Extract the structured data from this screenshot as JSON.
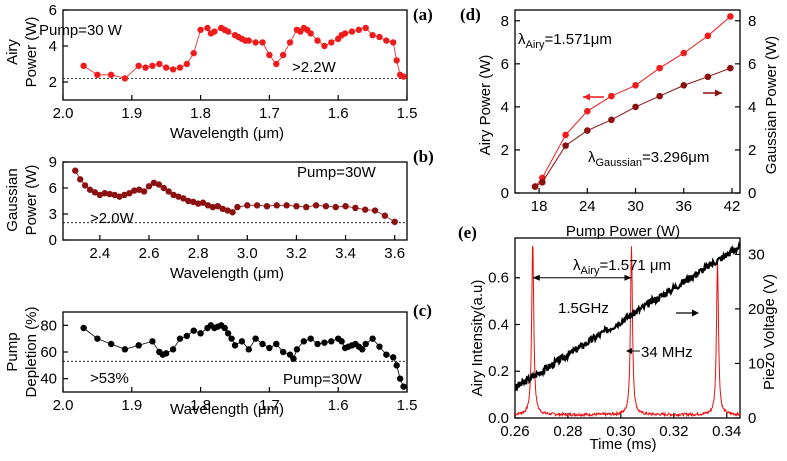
{
  "colors": {
    "red": "#ee1c1c",
    "darkred": "#8b1010",
    "black": "#000000",
    "trace_red": "#e81010"
  },
  "chart_data": [
    {
      "id": "a",
      "type": "scatter",
      "panel_label": "(a)",
      "xlabel": "Wavelength (μm)",
      "ylabel_lines": [
        "Airy",
        "Power (W)"
      ],
      "xlim": [
        2.0,
        1.5
      ],
      "ylim": [
        1,
        6
      ],
      "xticks": [
        2.0,
        1.9,
        1.8,
        1.7,
        1.6,
        1.5
      ],
      "xtick_labels": [
        "2.0",
        "1.9",
        "1.8",
        "1.7",
        "1.6",
        "1.5"
      ],
      "yticks": [
        2,
        4,
        6
      ],
      "ytick_labels": [
        "2",
        "4",
        "6"
      ],
      "annotation": "Pump=30 W",
      "threshold_label": ">2.2W",
      "threshold": 2.2,
      "series": [
        {
          "name": "Airy power",
          "color": "red",
          "x": [
            1.97,
            1.95,
            1.93,
            1.91,
            1.89,
            1.88,
            1.87,
            1.86,
            1.85,
            1.84,
            1.83,
            1.82,
            1.81,
            1.8,
            1.79,
            1.785,
            1.78,
            1.77,
            1.765,
            1.76,
            1.75,
            1.745,
            1.74,
            1.735,
            1.73,
            1.72,
            1.71,
            1.7,
            1.69,
            1.68,
            1.67,
            1.66,
            1.655,
            1.65,
            1.645,
            1.64,
            1.63,
            1.62,
            1.61,
            1.6,
            1.595,
            1.59,
            1.58,
            1.57,
            1.56,
            1.55,
            1.54,
            1.53,
            1.52,
            1.515,
            1.51,
            1.505
          ],
          "y": [
            2.9,
            2.4,
            2.4,
            2.2,
            2.9,
            2.8,
            2.9,
            3.0,
            2.8,
            2.7,
            2.8,
            3.0,
            3.6,
            4.9,
            5.0,
            4.7,
            4.8,
            5.0,
            4.9,
            4.8,
            4.6,
            4.5,
            4.4,
            4.3,
            4.3,
            4.2,
            4.2,
            3.5,
            3.0,
            3.5,
            4.2,
            4.9,
            4.8,
            5.0,
            4.9,
            4.7,
            4.3,
            4.0,
            4.2,
            4.4,
            4.6,
            4.7,
            4.8,
            4.9,
            5.0,
            4.6,
            4.5,
            4.3,
            4.2,
            3.2,
            2.4,
            2.3
          ]
        }
      ]
    },
    {
      "id": "b",
      "type": "scatter",
      "panel_label": "(b)",
      "xlabel": "Wavelength (μm)",
      "ylabel_lines": [
        "Gaussian",
        "Power (W)"
      ],
      "xlim": [
        2.25,
        3.65
      ],
      "ylim": [
        0,
        9
      ],
      "xticks": [
        2.4,
        2.6,
        2.8,
        3.0,
        3.2,
        3.4,
        3.6
      ],
      "xtick_labels": [
        "2.4",
        "2.6",
        "2.8",
        "3.0",
        "3.2",
        "3.4",
        "3.6"
      ],
      "yticks": [
        0,
        3,
        6,
        9
      ],
      "ytick_labels": [
        "0",
        "3",
        "6",
        "9"
      ],
      "annotation": "Pump=30W",
      "threshold_label": ">2.0W",
      "threshold": 2.0,
      "series": [
        {
          "name": "Gaussian power",
          "color": "darkred",
          "x": [
            2.3,
            2.32,
            2.34,
            2.36,
            2.38,
            2.4,
            2.42,
            2.44,
            2.46,
            2.48,
            2.5,
            2.52,
            2.54,
            2.56,
            2.58,
            2.6,
            2.62,
            2.64,
            2.66,
            2.68,
            2.7,
            2.72,
            2.74,
            2.76,
            2.78,
            2.8,
            2.82,
            2.84,
            2.86,
            2.88,
            2.9,
            2.92,
            2.94,
            2.96,
            3.0,
            3.04,
            3.08,
            3.12,
            3.16,
            3.2,
            3.24,
            3.28,
            3.32,
            3.36,
            3.4,
            3.44,
            3.48,
            3.52,
            3.56,
            3.6
          ],
          "y": [
            8.0,
            7.0,
            6.3,
            5.8,
            5.5,
            5.2,
            5.4,
            5.3,
            5.2,
            5.0,
            5.2,
            5.4,
            5.7,
            5.8,
            5.6,
            6.2,
            6.6,
            6.4,
            6.0,
            5.6,
            5.2,
            5.0,
            4.8,
            4.5,
            4.4,
            4.2,
            4.3,
            4.0,
            3.8,
            3.9,
            3.6,
            3.4,
            3.2,
            3.8,
            4.0,
            4.0,
            3.9,
            4.0,
            4.0,
            3.9,
            3.8,
            4.0,
            3.9,
            3.8,
            3.9,
            3.7,
            3.5,
            3.4,
            2.8,
            2.1
          ]
        }
      ]
    },
    {
      "id": "c",
      "type": "scatter",
      "panel_label": "(c)",
      "xlabel": "Wavelength (μm)",
      "ylabel_lines": [
        "Pump",
        "Depletion (%)"
      ],
      "xlim": [
        2.0,
        1.5
      ],
      "ylim": [
        30,
        90
      ],
      "xticks": [
        2.0,
        1.9,
        1.8,
        1.7,
        1.6,
        1.5
      ],
      "xtick_labels": [
        "2.0",
        "1.9",
        "1.8",
        "1.7",
        "1.6",
        "1.5"
      ],
      "yticks": [
        40,
        60,
        80
      ],
      "ytick_labels": [
        "40",
        "60",
        "80"
      ],
      "annotation": "Pump=30W",
      "threshold_label": ">53%",
      "threshold": 53,
      "series": [
        {
          "name": "Pump depletion",
          "color": "black",
          "x": [
            1.97,
            1.95,
            1.93,
            1.91,
            1.89,
            1.87,
            1.86,
            1.855,
            1.85,
            1.84,
            1.83,
            1.82,
            1.81,
            1.8,
            1.79,
            1.785,
            1.78,
            1.775,
            1.77,
            1.765,
            1.76,
            1.755,
            1.75,
            1.74,
            1.73,
            1.72,
            1.71,
            1.7,
            1.69,
            1.68,
            1.67,
            1.665,
            1.66,
            1.65,
            1.64,
            1.63,
            1.62,
            1.61,
            1.6,
            1.595,
            1.59,
            1.585,
            1.58,
            1.575,
            1.57,
            1.565,
            1.56,
            1.55,
            1.54,
            1.53,
            1.52,
            1.515,
            1.51,
            1.505
          ],
          "y": [
            78,
            70,
            66,
            62,
            65,
            68,
            60,
            58,
            59,
            62,
            70,
            72,
            76,
            74,
            78,
            80,
            78,
            79,
            80,
            78,
            74,
            70,
            65,
            68,
            62,
            70,
            66,
            63,
            66,
            60,
            58,
            55,
            62,
            68,
            70,
            66,
            67,
            68,
            70,
            68,
            63,
            64,
            65,
            66,
            64,
            62,
            66,
            70,
            64,
            58,
            56,
            50,
            40,
            34
          ]
        }
      ]
    },
    {
      "id": "d",
      "type": "line",
      "panel_label": "(d)",
      "xlabel": "Pump Power (W)",
      "ylabel": "Airy Power (W)",
      "ylabel_right": "Gaussian Power (W)",
      "xlim": [
        15,
        43
      ],
      "ylim": [
        0,
        8.5
      ],
      "ylim_right": [
        0,
        8.5
      ],
      "xticks": [
        18,
        24,
        30,
        36,
        42
      ],
      "xtick_labels": [
        "18",
        "24",
        "30",
        "36",
        "42"
      ],
      "yticks": [
        0,
        2,
        4,
        6,
        8
      ],
      "ytick_labels": [
        "0",
        "2",
        "4",
        "6",
        "8"
      ],
      "label_airy_main": "λ",
      "label_airy_sub": "Airy",
      "label_airy_val": "=1.571μm",
      "label_gauss_main": "λ",
      "label_gauss_sub": "Gaussian",
      "label_gauss_val": "=3.296μm",
      "series": [
        {
          "name": "Airy",
          "color": "red",
          "axis": "left",
          "x": [
            17.5,
            18.4,
            21.3,
            24.0,
            27.0,
            30.0,
            33.0,
            36.0,
            39.0,
            41.8
          ],
          "y": [
            0.3,
            0.7,
            2.7,
            3.8,
            4.5,
            5.0,
            5.8,
            6.5,
            7.3,
            8.2
          ]
        },
        {
          "name": "Gaussian",
          "color": "darkred",
          "axis": "right",
          "x": [
            17.5,
            18.4,
            21.3,
            24.0,
            27.0,
            30.0,
            33.0,
            36.0,
            39.0,
            41.8
          ],
          "y": [
            0.3,
            0.5,
            2.2,
            2.9,
            3.4,
            4.0,
            4.5,
            5.0,
            5.4,
            5.8
          ]
        }
      ]
    },
    {
      "id": "e",
      "type": "line",
      "panel_label": "(e)",
      "xlabel": "Time (ms)",
      "ylabel": "Airy Intensity(a.u)",
      "ylabel_right": "Piezo Voltage (V)",
      "xlim": [
        0.26,
        0.345
      ],
      "ylim": [
        0,
        0.77
      ],
      "ylim_right": [
        0,
        33
      ],
      "xticks": [
        0.26,
        0.28,
        0.3,
        0.32,
        0.34
      ],
      "xtick_labels": [
        "0.26",
        "0.28",
        "0.30",
        "0.32",
        "0.34"
      ],
      "yticks": [
        0.0,
        0.2,
        0.4,
        0.6
      ],
      "ytick_labels": [
        "0.0",
        "0.2",
        "0.4",
        "0.6"
      ],
      "yticks_right": [
        0,
        10,
        20,
        30
      ],
      "ytick_labels_right": [
        "0",
        "10",
        "20",
        "30"
      ],
      "label_main": "λ",
      "label_sub": "Airy",
      "label_val": "=1.571 μm",
      "fsr_label": "1.5GHz",
      "linewidth_label": "34 MHz",
      "peaks": [
        {
          "x": 0.2667,
          "y": 0.75
        },
        {
          "x": 0.304,
          "y": 0.72
        },
        {
          "x": 0.3365,
          "y": 0.66
        }
      ],
      "piezo_ramp": {
        "x": [
          0.26,
          0.345
        ],
        "y": [
          5.5,
          31.5
        ]
      }
    }
  ]
}
